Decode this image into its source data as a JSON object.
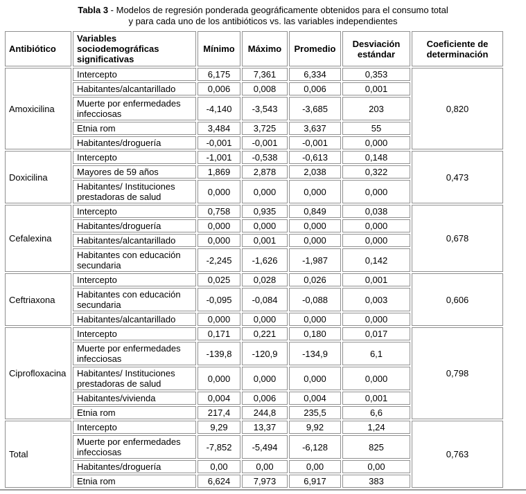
{
  "title": {
    "line1_bold": "Tabla 3",
    "line1_text": " - Modelos de regresión ponderada geográficamente obtenidos para el consumo total",
    "line2": "y para cada uno de los antibióticos vs. las variables independientes"
  },
  "table": {
    "headers": [
      "Antibiótico",
      "Variables sociodemográficas significativas",
      "Mínimo",
      "Máximo",
      "Promedio",
      "Desviación estándar",
      "Coeficiente de determinación"
    ],
    "groups": [
      {
        "antibiotic": "Amoxicilina",
        "r2": "0,820",
        "rows": [
          {
            "variable": "Intercepto",
            "min": "6,175",
            "max": "7,361",
            "avg": "6,334",
            "sd": "0,353"
          },
          {
            "variable": "Habitantes/alcantarillado",
            "min": "0,006",
            "max": "0,008",
            "avg": "0,006",
            "sd": "0,001"
          },
          {
            "variable": "Muerte por enfermedades infecciosas",
            "min": "-4,140",
            "max": "-3,543",
            "avg": "-3,685",
            "sd": "203"
          },
          {
            "variable": "Etnia rom",
            "min": "3,484",
            "max": "3,725",
            "avg": "3,637",
            "sd": "55"
          },
          {
            "variable": "Habitantes/droguería",
            "min": "-0,001",
            "max": "-0,001",
            "avg": "-0,001",
            "sd": "0,000"
          }
        ]
      },
      {
        "antibiotic": "Doxicilina",
        "r2": "0,473",
        "rows": [
          {
            "variable": "Intercepto",
            "min": "-1,001",
            "max": "-0,538",
            "avg": "-0,613",
            "sd": "0,148"
          },
          {
            "variable": "Mayores de 59 años",
            "min": "1,869",
            "max": "2,878",
            "avg": "2,038",
            "sd": "0,322"
          },
          {
            "variable": "Habitantes/ Instituciones prestadoras de salud",
            "min": "0,000",
            "max": "0,000",
            "avg": "0,000",
            "sd": "0,000"
          }
        ]
      },
      {
        "antibiotic": "Cefalexina",
        "r2": "0,678",
        "rows": [
          {
            "variable": "Intercepto",
            "min": "0,758",
            "max": "0,935",
            "avg": "0,849",
            "sd": "0,038"
          },
          {
            "variable": "Habitantes/droguería",
            "min": "0,000",
            "max": "0,000",
            "avg": "0,000",
            "sd": "0,000"
          },
          {
            "variable": "Habitantes/alcantarillado",
            "min": "0,000",
            "max": "0,001",
            "avg": "0,000",
            "sd": "0,000"
          },
          {
            "variable": "Habitantes con educación secundaria",
            "min": "-2,245",
            "max": "-1,626",
            "avg": "-1,987",
            "sd": "0,142"
          }
        ]
      },
      {
        "antibiotic": "Ceftriaxona",
        "r2": "0,606",
        "rows": [
          {
            "variable": "Intercepto",
            "min": "0,025",
            "max": "0,028",
            "avg": "0,026",
            "sd": "0,001"
          },
          {
            "variable": "Habitantes con educación secundaria",
            "min": "-0,095",
            "max": "-0,084",
            "avg": "-0,088",
            "sd": "0,003"
          },
          {
            "variable": "Habitantes/alcantarillado",
            "min": "0,000",
            "max": "0,000",
            "avg": "0,000",
            "sd": "0,000"
          }
        ]
      },
      {
        "antibiotic": "Ciprofloxacina",
        "r2": "0,798",
        "rows": [
          {
            "variable": "Intercepto",
            "min": "0,171",
            "max": "0,221",
            "avg": "0,180",
            "sd": "0,017"
          },
          {
            "variable": "Muerte por enfermedades infecciosas",
            "min": "-139,8",
            "max": "-120,9",
            "avg": "-134,9",
            "sd": "6,1"
          },
          {
            "variable": "Habitantes/ Instituciones prestadoras de salud",
            "min": "0,000",
            "max": "0,000",
            "avg": "0,000",
            "sd": "0,000"
          },
          {
            "variable": "Habitantes/vivienda",
            "min": "0,004",
            "max": "0,006",
            "avg": "0,004",
            "sd": "0,001"
          },
          {
            "variable": "Etnia rom",
            "min": "217,4",
            "max": "244,8",
            "avg": "235,5",
            "sd": "6,6"
          }
        ]
      },
      {
        "antibiotic": "Total",
        "r2": "0,763",
        "rows": [
          {
            "variable": "Intercepto",
            "min": "9,29",
            "max": "13,37",
            "avg": "9,92",
            "sd": "1,24"
          },
          {
            "variable": "Muerte por enfermedades infecciosas",
            "min": "-7,852",
            "max": "-5,494",
            "avg": "-6,128",
            "sd": "825"
          },
          {
            "variable": "Habitantes/droguería",
            "min": "0,00",
            "max": "0,00",
            "avg": "0,00",
            "sd": "0,00"
          },
          {
            "variable": "Etnia rom",
            "min": "6,624",
            "max": "7,973",
            "avg": "6,917",
            "sd": "383"
          }
        ]
      }
    ]
  },
  "colors": {
    "cell_border": "#8f8f8f",
    "text": "#000000",
    "background": "#ffffff",
    "bottom_rule": "#9c9c9c"
  }
}
